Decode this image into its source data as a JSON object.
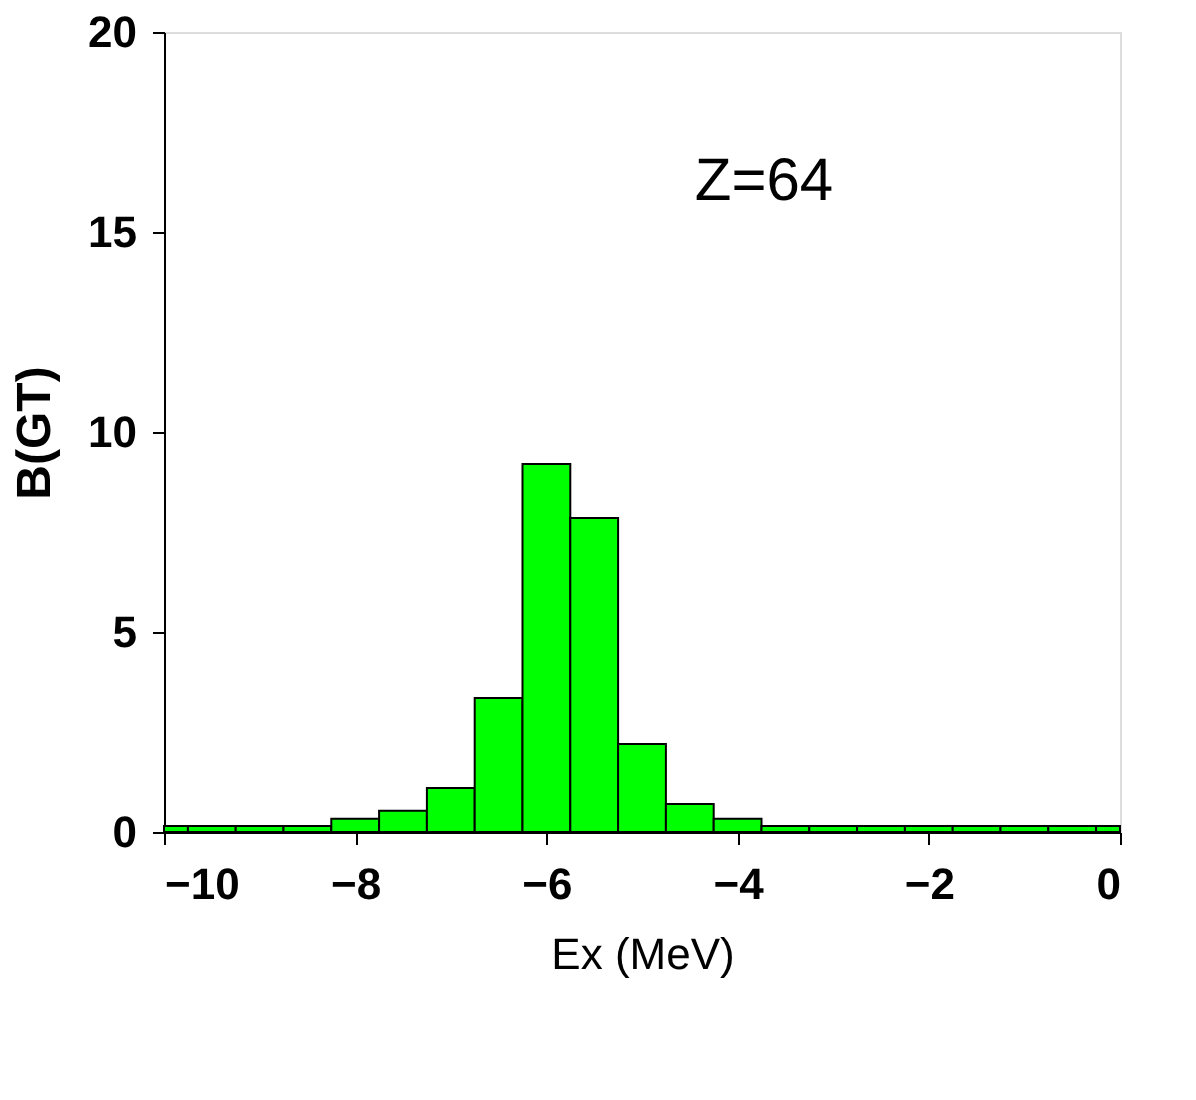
{
  "chart_data": {
    "type": "histogram",
    "xlabel": "Ex (MeV)",
    "ylabel": "B(GT)",
    "annotations": [
      "Z=64"
    ],
    "bins": [
      -10,
      -9.75,
      -9.25,
      -8.75,
      -8.25,
      -7.75,
      -7.25,
      -6.75,
      -6.25,
      -5.75,
      -5.25,
      -4.75,
      -4.25,
      -3.75,
      -3.25,
      -2.75,
      -2.25,
      -1.75,
      -1.25,
      -0.75,
      -0.25,
      0
    ],
    "values": [
      0.15,
      0.15,
      0.15,
      0.15,
      0.33,
      0.53,
      1.1,
      3.35,
      9.2,
      7.85,
      2.2,
      0.7,
      0.33,
      0.15,
      0.15,
      0.15,
      0.15,
      0.15,
      0.15,
      0.15,
      0.15
    ],
    "color": "#00ff00",
    "xlim": [
      -10,
      0
    ],
    "xticks": [
      -10,
      -8,
      -6,
      -4,
      -2,
      0
    ],
    "ylim": [
      0,
      20
    ],
    "yticks": [
      0,
      5,
      10,
      15,
      20
    ],
    "grid": false
  }
}
